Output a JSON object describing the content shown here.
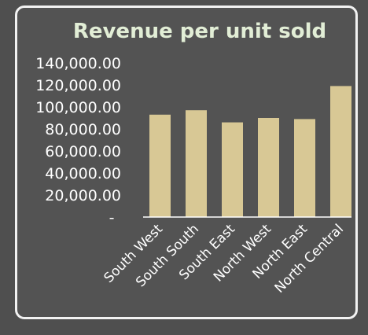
{
  "chart_data": {
    "type": "bar",
    "title": "Revenue per unit sold",
    "xlabel": "",
    "ylabel": "",
    "categories": [
      "South West",
      "South South",
      "South East",
      "North West",
      "North East",
      "North Central"
    ],
    "values": [
      93000,
      97000,
      86000,
      90000,
      89000,
      119000
    ],
    "ylim": [
      0,
      140000
    ],
    "yticks": [
      "-",
      "20,000.00",
      "40,000.00",
      "60,000.00",
      "80,000.00",
      "100,000.00",
      "120,000.00",
      "140,000.00"
    ],
    "grid": false,
    "legend": "none",
    "bar_color": "#d8c895",
    "axis_color": "#ffffff",
    "title_color": "#e2eed6",
    "background_color": "#535353"
  }
}
